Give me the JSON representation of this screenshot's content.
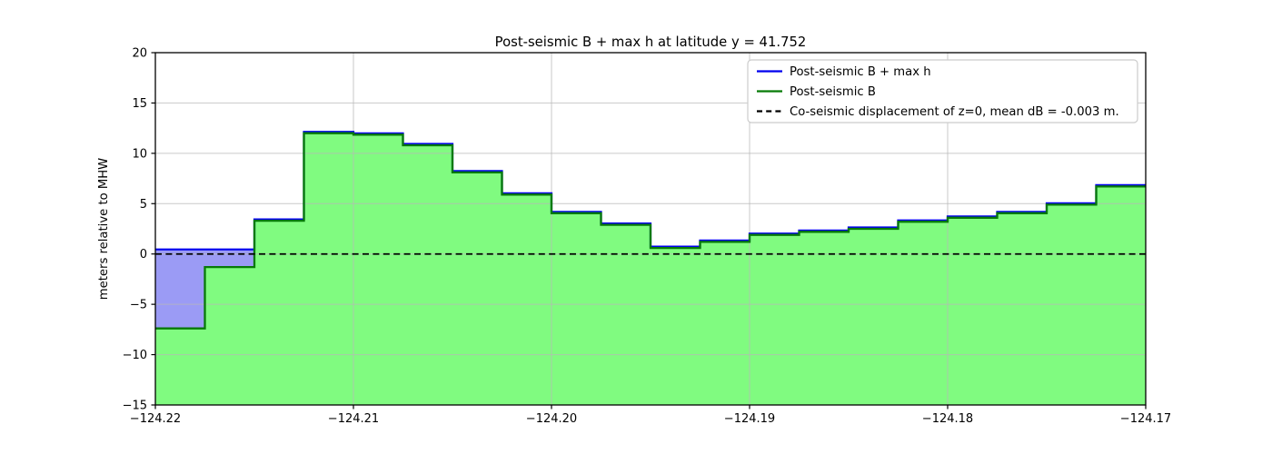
{
  "chart_data": {
    "type": "area",
    "title": "Post-seismic B + max h at latitude y = 41.752",
    "ylabel": "meters relative to MHW",
    "xlabel": "",
    "xlim": [
      -124.22,
      -124.17
    ],
    "ylim": [
      -15,
      20
    ],
    "x_ticks": [
      -124.22,
      -124.21,
      -124.2,
      -124.19,
      -124.18,
      -124.17
    ],
    "x_tick_labels": [
      "−124.22",
      "−124.21",
      "−124.20",
      "−124.19",
      "−124.18",
      "−124.17"
    ],
    "y_ticks": [
      -15,
      -10,
      -5,
      0,
      5,
      10,
      15,
      20
    ],
    "y_tick_labels": [
      "−15",
      "−10",
      "−5",
      "0",
      "5",
      "10",
      "15",
      "20"
    ],
    "grid": true,
    "step_x_start": -124.22,
    "step_width": 0.0025,
    "series": [
      {
        "name": "Post-seismic B",
        "type": "step-area",
        "values": [
          -7.4,
          -1.3,
          3.3,
          12.0,
          11.85,
          10.8,
          8.1,
          5.9,
          4.05,
          2.9,
          0.6,
          1.2,
          1.9,
          2.2,
          2.5,
          3.2,
          3.6,
          4.05,
          4.9,
          6.7
        ],
        "line_color": "#077a07",
        "fill_color": "#80fb80"
      },
      {
        "name": "Post-seismic B + max h",
        "type": "step-line-with-water-fill",
        "water_level": 0.45,
        "wet_cells": 2,
        "line_color": "#0000ee",
        "fill_color": "rgba(45,45,235,0.48)"
      },
      {
        "name": "Co-seismic displacement of z=0",
        "type": "hline",
        "y": -0.003,
        "style": "dashed",
        "line_color": "#000000"
      }
    ],
    "legend_position": "upper right",
    "legend": [
      {
        "label": "Post-seismic B + max h",
        "color": "#0000ee",
        "dash": false
      },
      {
        "label": "Post-seismic B",
        "color": "#077a07",
        "dash": false
      },
      {
        "label": "Co-seismic displacement of z=0, mean dB = -0.003 m.",
        "color": "#000000",
        "dash": true
      }
    ],
    "grid_color": "#b8b8b8",
    "spine_color": "#000000"
  }
}
